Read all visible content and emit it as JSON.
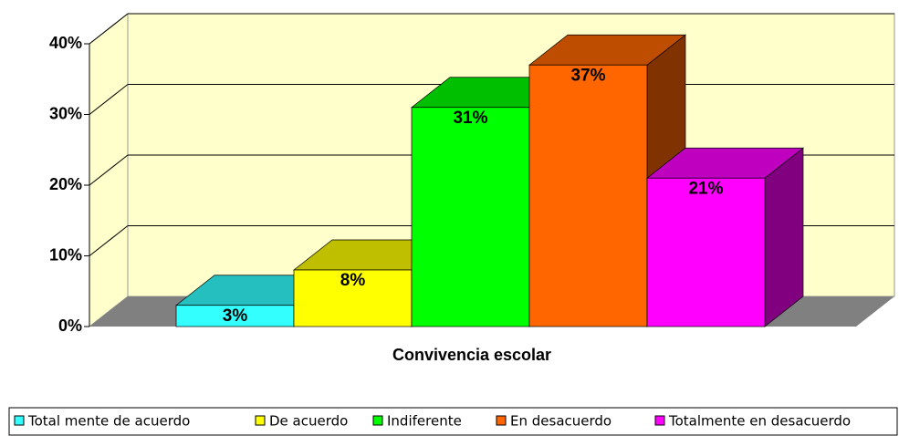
{
  "chart_data": {
    "type": "bar3d",
    "xlabel": "Convivencia escolar",
    "categories": [
      "Convivencia escolar"
    ],
    "series": [
      {
        "name": "Total mente de acuerdo",
        "color": "#33ffff",
        "values": [
          3
        ],
        "value_labels": [
          "3%"
        ]
      },
      {
        "name": "De acuerdo",
        "color": "#ffff00",
        "values": [
          8
        ],
        "value_labels": [
          "8%"
        ]
      },
      {
        "name": "Indiferente",
        "color": "#00ff00",
        "values": [
          31
        ],
        "value_labels": [
          "31%"
        ]
      },
      {
        "name": "En desacuerdo",
        "color": "#ff6600",
        "values": [
          37
        ],
        "value_labels": [
          "37%"
        ]
      },
      {
        "name": "Totalmente en desacuerdo",
        "color": "#ff00ff",
        "values": [
          21
        ],
        "value_labels": [
          "21%"
        ]
      }
    ],
    "ylim": [
      0,
      40
    ],
    "yticks": [
      {
        "value": 0,
        "label": "0%"
      },
      {
        "value": 10,
        "label": "10%"
      },
      {
        "value": 20,
        "label": "20%"
      },
      {
        "value": 30,
        "label": "30%"
      },
      {
        "value": 40,
        "label": "40%"
      }
    ],
    "grid": true,
    "legend": "bottom"
  }
}
